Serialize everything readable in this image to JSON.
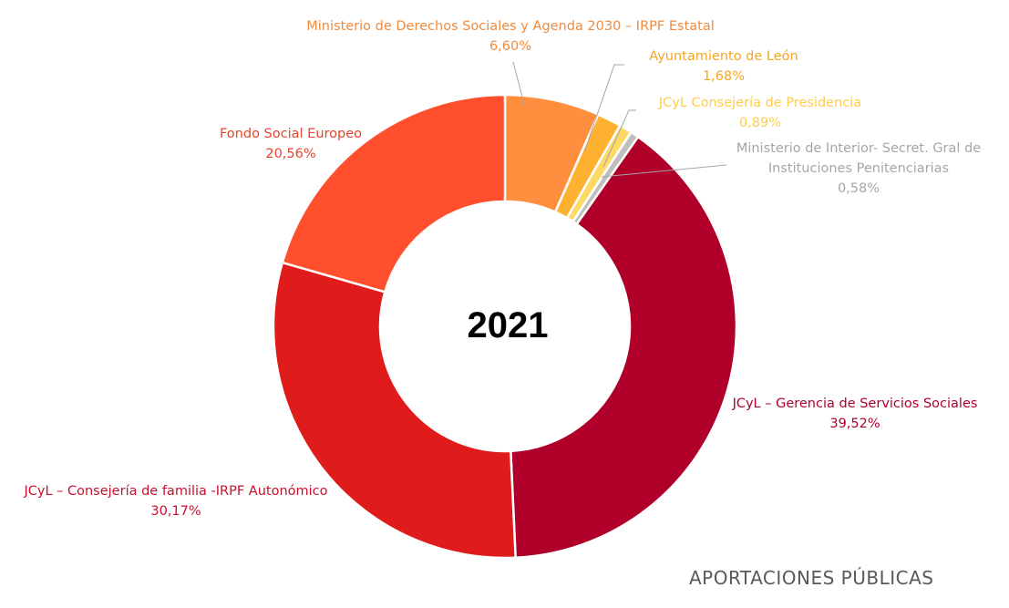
{
  "chart_data": {
    "type": "pie",
    "variant": "donut",
    "center_label": "2021",
    "footer_title": "APORTACIONES PÚBLICAS",
    "slices": [
      {
        "name": "JCyL – Gerencia de Servicios Sociales",
        "value": 39.52,
        "value_label": "39,52%",
        "color": "#B0002A",
        "label_color": "#B0002A"
      },
      {
        "name": "JCyL – Consejería de familia -IRPF Autonómico",
        "value": 30.17,
        "value_label": "30,17%",
        "color": "#E01B1B",
        "label_color": "#C8102E"
      },
      {
        "name": "Fondo Social Europeo",
        "value": 20.56,
        "value_label": "20,56%",
        "color": "#FF4F2D",
        "label_color": "#E8442A"
      },
      {
        "name": "Ministerio de Derechos Sociales y Agenda 2030 – IRPF Estatal",
        "value": 6.6,
        "value_label": "6,60%",
        "color": "#FF8E3F",
        "label_color": "#F08A3E"
      },
      {
        "name": "Ayuntamiento de León",
        "value": 1.68,
        "value_label": "1,68%",
        "color": "#FFB132",
        "label_color": "#F5A623"
      },
      {
        "name": "JCyL Consejería de Presidencia",
        "value": 0.89,
        "value_label": "0,89%",
        "color": "#FFD966",
        "label_color": "#FFCC4D"
      },
      {
        "name": "Ministerio de Interior- Secret. Gral de Instituciones Penitenciarias",
        "value": 0.58,
        "value_label": "0,58%",
        "color": "#BFBFBF",
        "label_color": "#A6A6A6"
      }
    ]
  }
}
